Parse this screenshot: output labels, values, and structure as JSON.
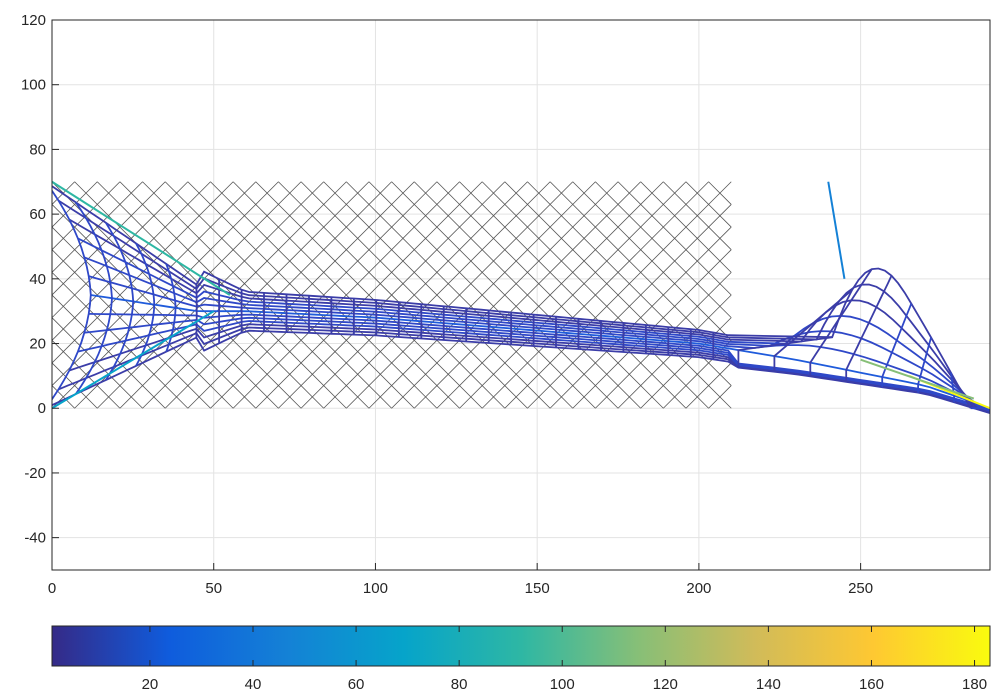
{
  "chart_data": {
    "type": "line",
    "title": "",
    "xlabel": "",
    "ylabel": "",
    "xlim": [
      0,
      290
    ],
    "ylim": [
      -50,
      120
    ],
    "grid": true,
    "xticks": [
      0,
      50,
      100,
      150,
      200,
      250
    ],
    "yticks": [
      -40,
      -20,
      0,
      20,
      40,
      60,
      80,
      100,
      120
    ],
    "reference_lattice": {
      "description_free": true,
      "x_range": [
        0,
        210
      ],
      "y_range": [
        0,
        70
      ],
      "color": "#555555"
    },
    "deformed_mesh": {
      "left_top": [
        0,
        70
      ],
      "left_bottom": [
        0,
        0
      ],
      "right_top": [
        240,
        70
      ],
      "right_bottom": [
        290,
        0
      ],
      "neck_center_line": [
        [
          60,
          30
        ],
        [
          100,
          28
        ],
        [
          150,
          24
        ],
        [
          200,
          20
        ],
        [
          230,
          15
        ],
        [
          270,
          7
        ],
        [
          290,
          0
        ]
      ]
    },
    "colorbar": {
      "location": "bottom",
      "colormap": "parula",
      "range": [
        1,
        183
      ],
      "ticks": [
        20,
        40,
        60,
        80,
        100,
        120,
        140,
        160,
        180
      ]
    }
  }
}
